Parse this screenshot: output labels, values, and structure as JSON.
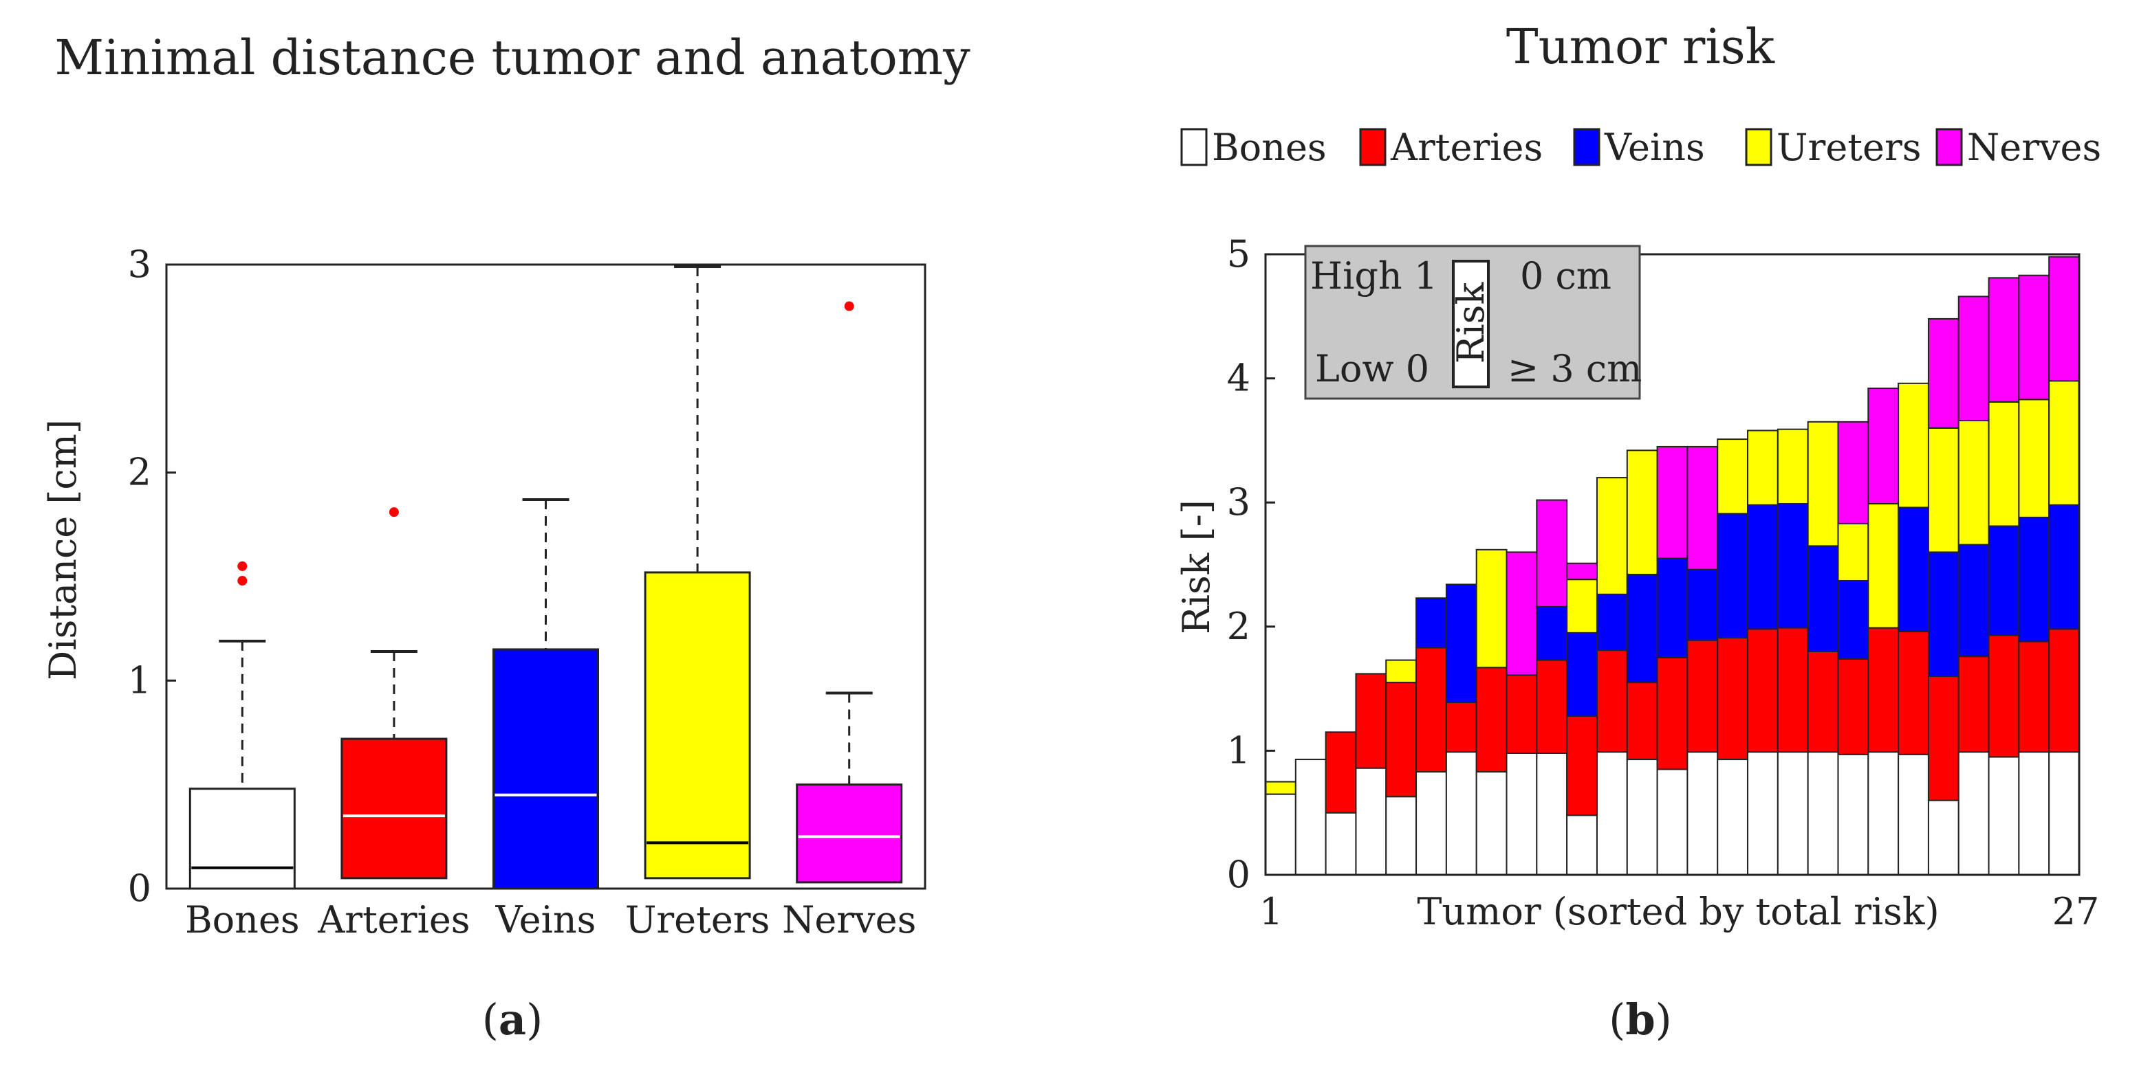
{
  "chart_data": [
    {
      "type": "box",
      "title": "Minimal distance tumor and anatomy",
      "ylabel": "Distance [cm]",
      "xlabel": "",
      "ylim": [
        0,
        3
      ],
      "yticks": [
        "0",
        "1",
        "2",
        "3"
      ],
      "categories": [
        "Bones",
        "Arteries",
        "Veins",
        "Ureters",
        "Nerves"
      ],
      "boxes": [
        {
          "name": "Bones",
          "color": "#ffffff",
          "median_color": "#000000",
          "min": 0.0,
          "q1": 0.0,
          "median": 0.1,
          "q3": 0.48,
          "max": 1.19,
          "outliers": [
            1.48,
            1.55
          ]
        },
        {
          "name": "Arteries",
          "color": "#ff0000",
          "median_color": "#ffffff",
          "min": 0.05,
          "q1": 0.05,
          "median": 0.35,
          "q3": 0.72,
          "max": 1.14,
          "outliers": [
            1.81
          ]
        },
        {
          "name": "Veins",
          "color": "#0000ff",
          "median_color": "#ffffff",
          "min": 0.0,
          "q1": 0.0,
          "median": 0.45,
          "q3": 1.15,
          "max": 1.87,
          "outliers": []
        },
        {
          "name": "Ureters",
          "color": "#ffff00",
          "median_color": "#000000",
          "min": 0.05,
          "q1": 0.05,
          "median": 0.22,
          "q3": 1.52,
          "max": 2.99,
          "outliers": []
        },
        {
          "name": "Nerves",
          "color": "#ff00ff",
          "median_color": "#ffffff",
          "min": 0.03,
          "q1": 0.03,
          "median": 0.25,
          "q3": 0.5,
          "max": 0.94,
          "outliers": [
            2.8
          ]
        }
      ],
      "panel_label": "a"
    },
    {
      "type": "stacked-bar",
      "title": "Tumor risk",
      "ylabel": "Risk [-]",
      "xlabel": "Tumor (sorted by total risk)",
      "x_first_label": "1",
      "x_last_label": "27",
      "ylim": [
        0,
        5
      ],
      "yticks": [
        "0",
        "1",
        "2",
        "3",
        "4",
        "5"
      ],
      "legend": [
        "Bones",
        "Arteries",
        "Veins",
        "Ureters",
        "Nerves"
      ],
      "colors": [
        "#ffffff",
        "#ff0000",
        "#0000ff",
        "#ffff00",
        "#ff00ff"
      ],
      "series": [
        {
          "name": "Bones",
          "values": [
            0.65,
            0.93,
            0.5,
            0.86,
            0.63,
            0.83,
            0.99,
            0.83,
            0.98,
            0.98,
            0.48,
            0.99,
            0.93,
            0.85,
            0.99,
            0.93,
            0.99,
            0.99,
            0.99,
            0.97,
            0.99,
            0.97,
            0.6,
            0.99,
            0.95,
            0.99,
            0.99
          ]
        },
        {
          "name": "Arteries",
          "values": [
            0.0,
            0.0,
            0.65,
            0.76,
            0.92,
            1.0,
            0.4,
            0.84,
            0.63,
            0.75,
            0.8,
            0.82,
            0.62,
            0.9,
            0.9,
            0.98,
            0.99,
            1.0,
            0.81,
            0.77,
            1.0,
            0.99,
            1.0,
            0.77,
            0.98,
            0.89,
            0.99
          ]
        },
        {
          "name": "Veins",
          "values": [
            0.0,
            0.0,
            0.0,
            0.0,
            0.0,
            0.4,
            0.95,
            0.0,
            0.0,
            0.43,
            0.67,
            0.45,
            0.87,
            0.8,
            0.57,
            1.0,
            1.0,
            1.0,
            0.85,
            0.63,
            0.0,
            1.0,
            1.0,
            0.9,
            0.88,
            1.0,
            1.0
          ]
        },
        {
          "name": "Ureters",
          "values": [
            0.1,
            0.0,
            0.0,
            0.0,
            0.18,
            0.0,
            0.0,
            0.95,
            0.0,
            0.0,
            0.43,
            0.94,
            1.0,
            0.0,
            0.0,
            0.6,
            0.6,
            0.6,
            1.0,
            0.46,
            1.0,
            1.0,
            1.0,
            1.0,
            1.0,
            0.95,
            1.0
          ]
        },
        {
          "name": "Nerves",
          "values": [
            0.0,
            0.0,
            0.0,
            0.0,
            0.0,
            0.0,
            0.0,
            0.0,
            0.99,
            0.86,
            0.13,
            0.0,
            0.0,
            0.9,
            0.99,
            0.0,
            0.0,
            0.0,
            0.0,
            0.82,
            0.93,
            0.0,
            0.88,
            1.0,
            1.0,
            1.0,
            1.0
          ]
        }
      ],
      "info_box": {
        "high_label": "High 1",
        "low_label": "Low 0",
        "risk_label": "Risk",
        "near_label": "0 cm",
        "far_label": "≥ 3 cm"
      },
      "panel_label": "b"
    }
  ],
  "panels": {
    "a_label": "a",
    "b_label": "b"
  }
}
